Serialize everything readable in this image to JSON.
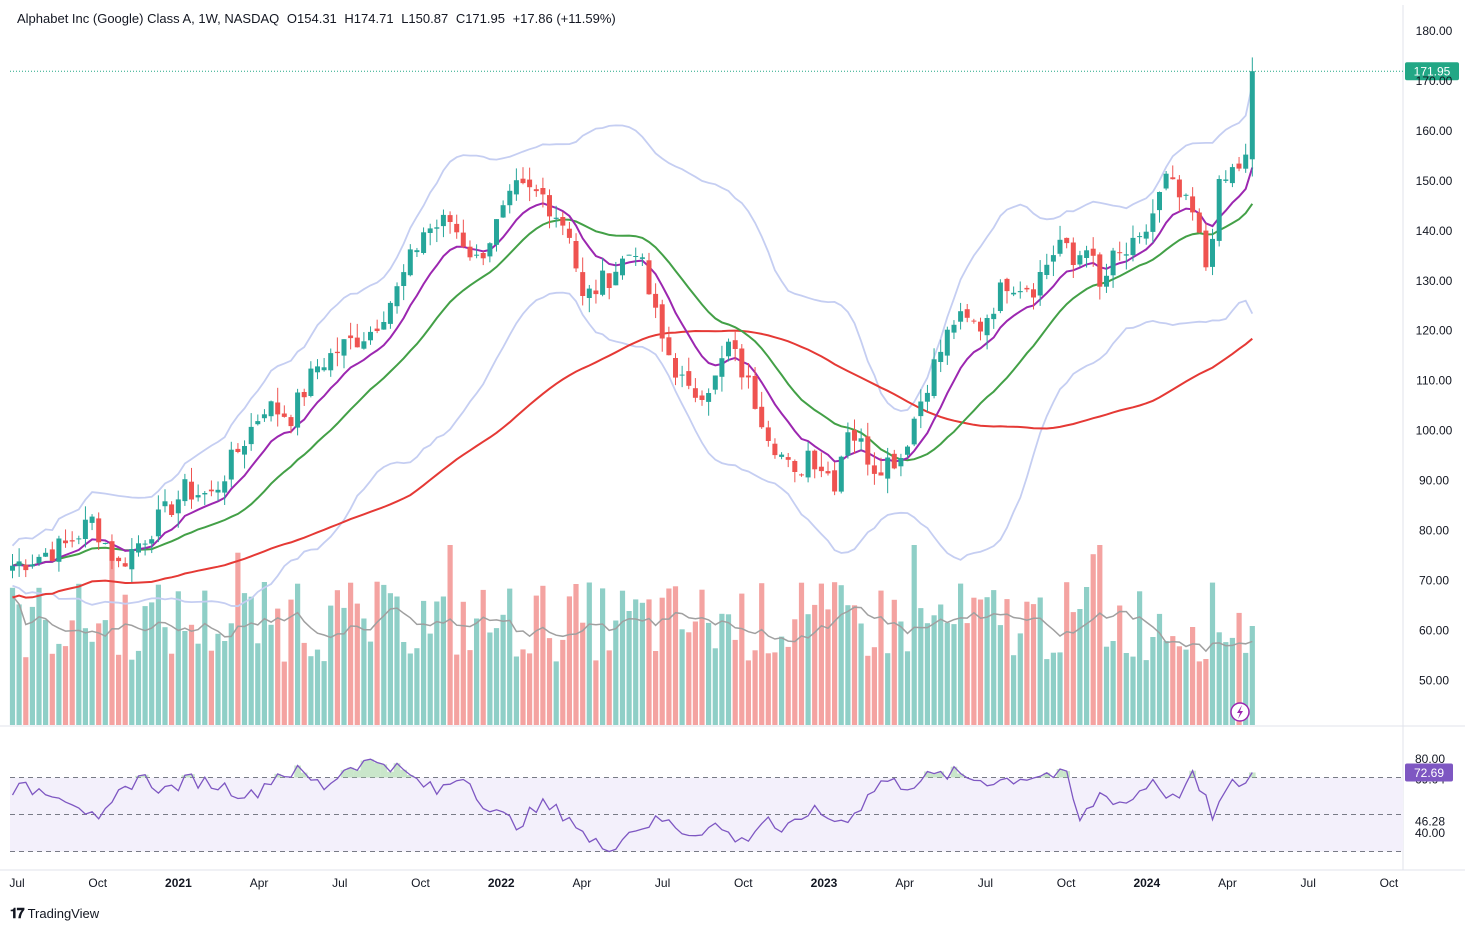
{
  "header": {
    "symbol": "Alphabet Inc (Google) Class A, 1W, NASDAQ",
    "open": "O154.31",
    "high": "H174.71",
    "low": "L150.87",
    "close": "C171.95",
    "change": "+17.86 (+11.59%)"
  },
  "footer": {
    "brand": "TradingView"
  },
  "colors": {
    "up": "#26a69a",
    "down": "#ef5350",
    "vol_up": "#8fcfc7",
    "vol_down": "#f4a3a1",
    "ema20": "#9c27b0",
    "sma50": "#43a047",
    "sma200": "#e53935",
    "bollinger": "#c5cef2",
    "vol_ma": "#a0a0a0",
    "rsi": "#7e57c2",
    "rsi_band": "#f3f0fb",
    "last_price_bg": "#22a785"
  },
  "chart_data": {
    "type": "candlestick",
    "interval": "1W",
    "last_price": "171.95",
    "y_ticks": [
      "180.00",
      "170.00",
      "160.00",
      "150.00",
      "140.00",
      "130.00",
      "120.00",
      "110.00",
      "100.00",
      "90.00",
      "80.00",
      "70.00",
      "60.00",
      "50.00"
    ],
    "ylim": [
      45,
      183
    ],
    "x_labels": [
      "Jul",
      "Oct",
      "2021",
      "Apr",
      "Jul",
      "Oct",
      "2022",
      "Apr",
      "Jul",
      "Oct",
      "2023",
      "Apr",
      "Jul",
      "Oct",
      "2024",
      "Apr",
      "Jul",
      "Oct"
    ],
    "price_anchors": [
      [
        0,
        73
      ],
      [
        8,
        77
      ],
      [
        12,
        82
      ],
      [
        16,
        73
      ],
      [
        20,
        79
      ],
      [
        26,
        88
      ],
      [
        30,
        87
      ],
      [
        34,
        96
      ],
      [
        38,
        105
      ],
      [
        42,
        103
      ],
      [
        46,
        113
      ],
      [
        50,
        117
      ],
      [
        54,
        120
      ],
      [
        58,
        128
      ],
      [
        62,
        140
      ],
      [
        66,
        142
      ],
      [
        70,
        134
      ],
      [
        76,
        148
      ],
      [
        80,
        147
      ],
      [
        84,
        140
      ],
      [
        86,
        126
      ],
      [
        90,
        131
      ],
      [
        94,
        137
      ],
      [
        98,
        118
      ],
      [
        102,
        107
      ],
      [
        106,
        110
      ],
      [
        108,
        117
      ],
      [
        110,
        112
      ],
      [
        114,
        100
      ],
      [
        118,
        90
      ],
      [
        120,
        96
      ],
      [
        124,
        90
      ],
      [
        126,
        101
      ],
      [
        130,
        93
      ],
      [
        134,
        95
      ],
      [
        138,
        110
      ],
      [
        142,
        122
      ],
      [
        146,
        121
      ],
      [
        150,
        130
      ],
      [
        154,
        129
      ],
      [
        158,
        138
      ],
      [
        160,
        133
      ],
      [
        162,
        138
      ],
      [
        164,
        128
      ],
      [
        166,
        134
      ],
      [
        170,
        137
      ],
      [
        174,
        150
      ],
      [
        178,
        143
      ],
      [
        180,
        133
      ],
      [
        182,
        148
      ],
      [
        184,
        152
      ],
      [
        186,
        154
      ],
      [
        187,
        172
      ]
    ],
    "volume_ticks_note": "",
    "rsi": {
      "value": "72.69",
      "ticks": [
        "80.00",
        "69.04",
        "46.28",
        "40.00"
      ],
      "upper": 70,
      "lower": 30,
      "ylim": [
        28,
        88
      ],
      "anchors": [
        [
          0,
          64
        ],
        [
          6,
          63
        ],
        [
          10,
          56
        ],
        [
          13,
          44
        ],
        [
          16,
          60
        ],
        [
          19,
          71
        ],
        [
          23,
          63
        ],
        [
          27,
          69
        ],
        [
          31,
          66
        ],
        [
          36,
          60
        ],
        [
          40,
          72
        ],
        [
          43,
          73
        ],
        [
          47,
          65
        ],
        [
          51,
          77
        ],
        [
          56,
          79
        ],
        [
          58,
          75
        ],
        [
          61,
          68
        ],
        [
          64,
          62
        ],
        [
          68,
          72
        ],
        [
          72,
          52
        ],
        [
          76,
          45
        ],
        [
          80,
          55
        ],
        [
          84,
          49
        ],
        [
          87,
          35
        ],
        [
          90,
          32
        ],
        [
          94,
          43
        ],
        [
          98,
          47
        ],
        [
          102,
          40
        ],
        [
          106,
          44
        ],
        [
          110,
          35
        ],
        [
          114,
          49
        ],
        [
          116,
          38
        ],
        [
          118,
          45
        ],
        [
          120,
          52
        ],
        [
          122,
          50
        ],
        [
          125,
          46
        ],
        [
          128,
          55
        ],
        [
          131,
          68
        ],
        [
          135,
          66
        ],
        [
          138,
          70
        ],
        [
          142,
          72
        ],
        [
          144,
          70
        ],
        [
          148,
          68
        ],
        [
          152,
          70
        ],
        [
          156,
          72
        ],
        [
          159,
          70
        ],
        [
          161,
          46
        ],
        [
          164,
          61
        ],
        [
          168,
          56
        ],
        [
          172,
          69
        ],
        [
          175,
          58
        ],
        [
          178,
          70
        ],
        [
          181,
          50
        ],
        [
          184,
          66
        ],
        [
          186,
          68
        ],
        [
          187,
          72.69
        ]
      ]
    }
  }
}
